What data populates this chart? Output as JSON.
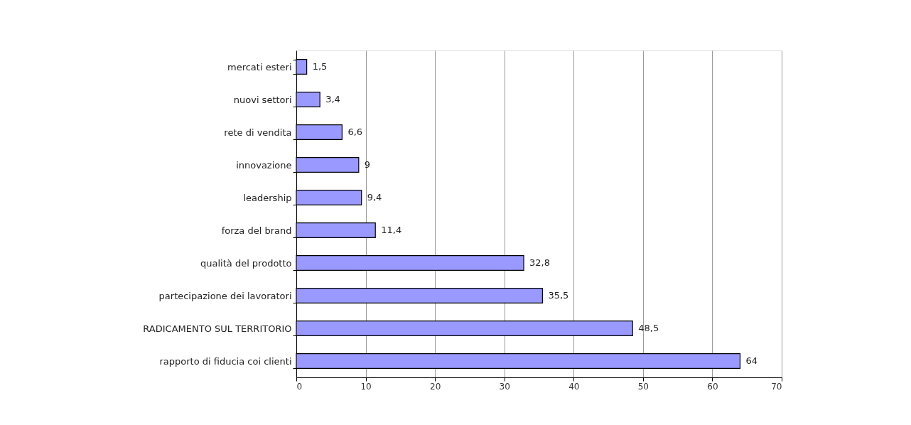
{
  "chart_data": {
    "type": "bar",
    "orientation": "horizontal",
    "categories": [
      "mercati esteri",
      "nuovi settori",
      "rete di vendita",
      "innovazione",
      "leadership",
      "forza del brand",
      "qualità del prodotto",
      "partecipazione dei lavoratori",
      "RADICAMENTO SUL TERRITORIO",
      "rapporto di fiducia coi clienti"
    ],
    "values": [
      1.5,
      3.4,
      6.6,
      9,
      9.4,
      11.4,
      32.8,
      35.5,
      48.5,
      64
    ],
    "value_labels": [
      "1,5",
      "3,4",
      "6,6",
      "9",
      "9,4",
      "11,4",
      "32,8",
      "35,5",
      "48,5",
      "64"
    ],
    "color": "#9999ff",
    "xlim": [
      0,
      70
    ],
    "xticks": [
      0,
      10,
      20,
      30,
      40,
      50,
      60,
      70
    ],
    "grid": "x"
  }
}
